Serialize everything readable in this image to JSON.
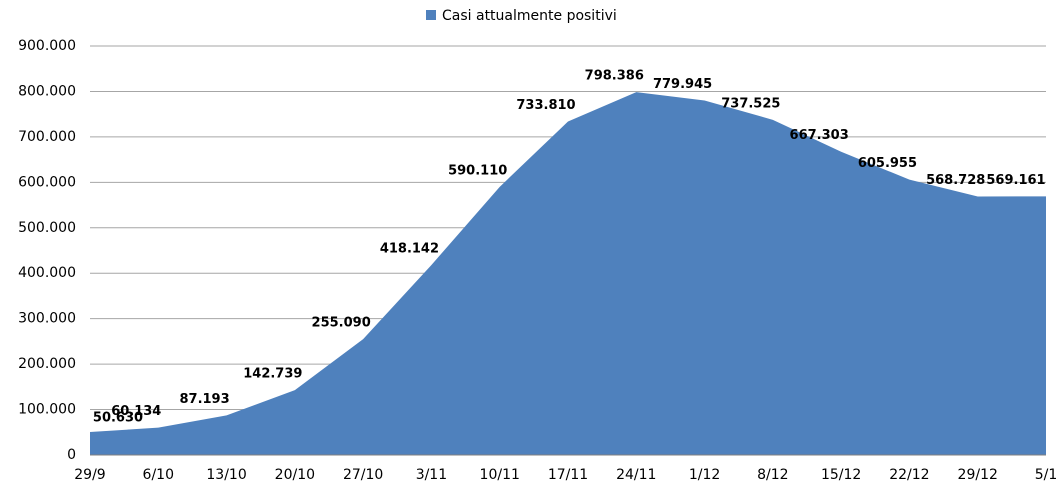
{
  "chart_data": {
    "type": "area",
    "categories": [
      "29/9",
      "6/10",
      "13/10",
      "20/10",
      "27/10",
      "3/11",
      "10/11",
      "17/11",
      "24/11",
      "1/12",
      "8/12",
      "15/12",
      "22/12",
      "29/12",
      "5/1"
    ],
    "series": [
      {
        "name": "Casi attualmente positivi",
        "color": "#4f81bd",
        "values": [
          50630,
          60134,
          87193,
          142739,
          255090,
          418142,
          590110,
          733810,
          798386,
          779945,
          737525,
          667303,
          605955,
          568728,
          569161
        ],
        "value_labels": [
          "50.630",
          "60.134",
          "87.193",
          "142.739",
          "255.090",
          "418.142",
          "590.110",
          "733.810",
          "798.386",
          "779.945",
          "737.525",
          "667.303",
          "605.955",
          "568.728",
          "569.161"
        ]
      }
    ],
    "ylim": [
      0,
      900000
    ],
    "yticks": [
      0,
      {
        "value": 100000,
        "label": "100.000"
      },
      {
        "value": 200000,
        "label": "200.000"
      },
      {
        "value": 300000,
        "label": "300.000"
      },
      {
        "value": 400000,
        "label": "400.000"
      },
      {
        "value": 500000,
        "label": "500.000"
      },
      {
        "value": 600000,
        "label": "600.000"
      },
      {
        "value": 700000,
        "label": "700.000"
      },
      {
        "value": 800000,
        "label": "800.000"
      },
      {
        "value": 900000,
        "label": "900.000"
      }
    ],
    "grid": true,
    "legend": "top"
  }
}
